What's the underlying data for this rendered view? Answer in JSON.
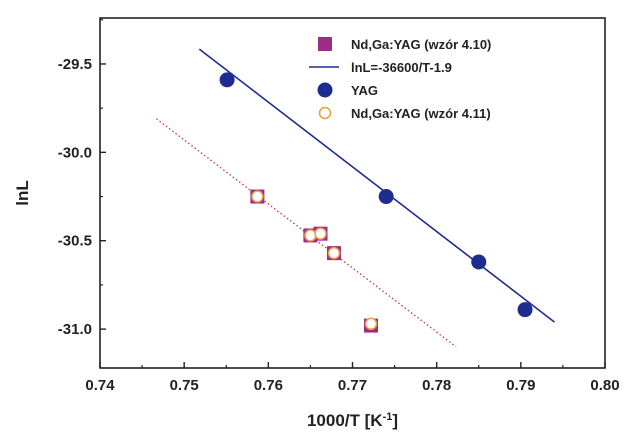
{
  "chart_data": {
    "type": "scatter",
    "xlabel": "1000/T [K",
    "xlabel_sup": "-1",
    "xlabel_close": "]",
    "ylabel": "lnL",
    "xlim": [
      0.74,
      0.8
    ],
    "ylim": [
      -31.22,
      -29.24
    ],
    "x_ticks": [
      0.74,
      0.75,
      0.76,
      0.77,
      0.78,
      0.79,
      0.8
    ],
    "x_tick_labels": [
      "0.74",
      "0.75",
      "0.76",
      "0.77",
      "0.78",
      "0.79",
      "0.80"
    ],
    "y_ticks": [
      -29.5,
      -30.0,
      -30.5,
      -31.0
    ],
    "y_tick_labels": [
      "-29.5",
      "-30.0",
      "-30.5",
      "-31.0"
    ],
    "grid": false,
    "legend_position": "top-right",
    "series": [
      {
        "name": "Nd,Ga:YAG (wzór 4.10)",
        "kind": "marker",
        "marker": "square",
        "color": "#9b2d86",
        "points": [
          {
            "x": 0.7587,
            "y": -30.25
          },
          {
            "x": 0.765,
            "y": -30.47
          },
          {
            "x": 0.7662,
            "y": -30.46
          },
          {
            "x": 0.7678,
            "y": -30.57
          },
          {
            "x": 0.7722,
            "y": -30.98
          }
        ]
      },
      {
        "name": "lnL=-36600/T-1.9",
        "kind": "line",
        "color": "#1f2c8f",
        "x_range": [
          0.7518,
          0.794
        ]
      },
      {
        "name": "YAG",
        "kind": "marker",
        "marker": "circle",
        "color": "#1f2c8f",
        "points": [
          {
            "x": 0.7551,
            "y": -29.59
          },
          {
            "x": 0.774,
            "y": -30.25
          },
          {
            "x": 0.785,
            "y": -30.62
          },
          {
            "x": 0.7905,
            "y": -30.89
          }
        ]
      },
      {
        "name": "Nd,Ga:YAG (wzór 4.11)",
        "kind": "marker",
        "marker": "open-circle",
        "color": "#f09a3e",
        "points": [
          {
            "x": 0.7587,
            "y": -30.25
          },
          {
            "x": 0.765,
            "y": -30.47
          },
          {
            "x": 0.7662,
            "y": -30.46
          },
          {
            "x": 0.7678,
            "y": -30.57
          },
          {
            "x": 0.7722,
            "y": -30.97
          }
        ]
      },
      {
        "kind": "dotted-line",
        "color": "#c0306f",
        "points": [
          {
            "x": 0.7467,
            "y": -29.81
          },
          {
            "x": 0.7823,
            "y": -31.1
          }
        ]
      }
    ]
  }
}
